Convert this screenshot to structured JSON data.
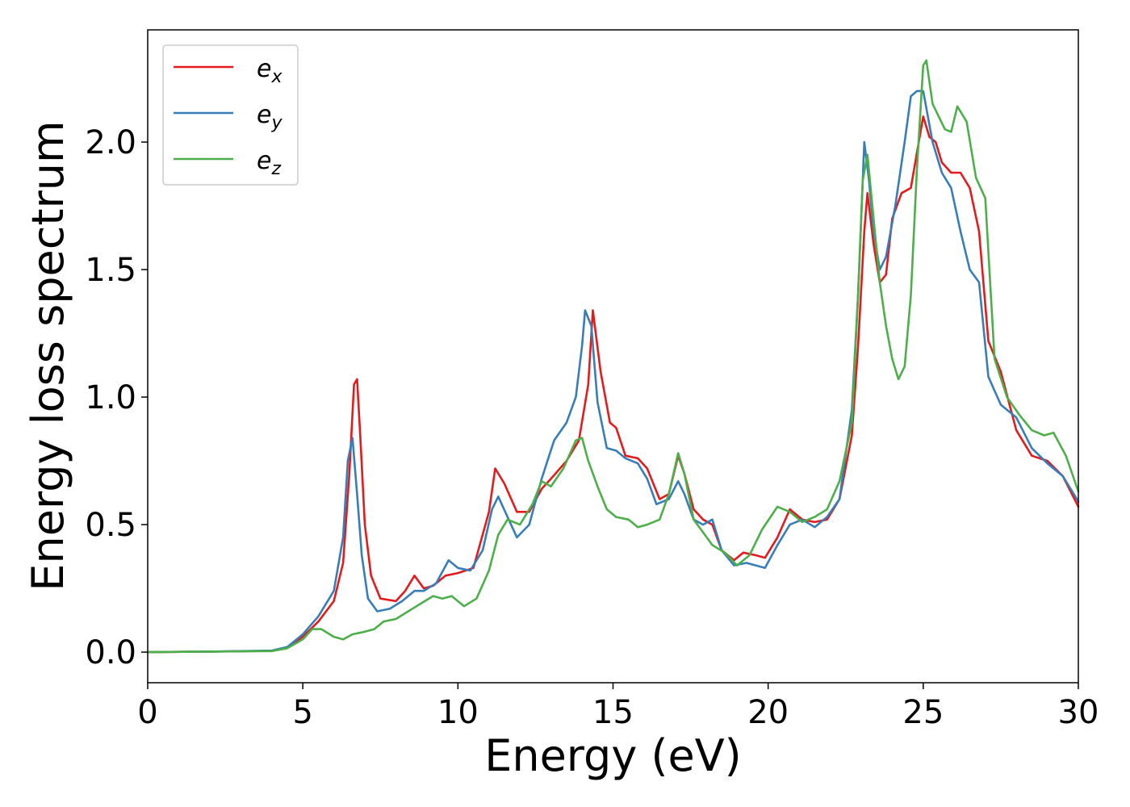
{
  "chart_data": {
    "type": "line",
    "xlabel": "Energy (eV)",
    "ylabel": "Energy loss spectrum",
    "xlim": [
      0,
      30
    ],
    "ylim": [
      -0.12,
      2.44
    ],
    "xticks": [
      0,
      5,
      10,
      15,
      20,
      25,
      30
    ],
    "xtick_labels": [
      "0",
      "5",
      "10",
      "15",
      "20",
      "25",
      "30"
    ],
    "yticks": [
      0.0,
      0.5,
      1.0,
      1.5,
      2.0
    ],
    "ytick_labels": [
      "0.0",
      "0.5",
      "1.0",
      "1.5",
      "2.0"
    ],
    "grid": false,
    "legend_position": "top-left",
    "series": [
      {
        "name": "e_x",
        "label_base": "e",
        "label_sub": "x",
        "color": "#e41a1c",
        "x": [
          0,
          2,
          4,
          4.5,
          5,
          5.5,
          6,
          6.3,
          6.5,
          6.65,
          6.75,
          6.85,
          7,
          7.2,
          7.5,
          8,
          8.3,
          8.6,
          8.9,
          9.2,
          9.6,
          10,
          10.5,
          11,
          11.2,
          11.5,
          11.9,
          12.3,
          12.7,
          13,
          13.5,
          13.9,
          14.2,
          14.35,
          14.6,
          14.9,
          15.1,
          15.4,
          15.8,
          16.1,
          16.5,
          16.8,
          17.1,
          17.3,
          17.6,
          17.9,
          18.2,
          18.5,
          18.9,
          19.2,
          19.6,
          19.9,
          20.3,
          20.7,
          21.1,
          21.5,
          21.9,
          22.3,
          22.7,
          22.9,
          23.1,
          23.2,
          23.4,
          23.6,
          23.8,
          24,
          24.3,
          24.6,
          24.8,
          25,
          25.2,
          25.4,
          25.6,
          25.9,
          26.2,
          26.5,
          26.8,
          27.1,
          27.5,
          28,
          28.5,
          29,
          29.5,
          30
        ],
        "y": [
          0.0,
          0.002,
          0.005,
          0.02,
          0.06,
          0.12,
          0.2,
          0.35,
          0.7,
          1.05,
          1.07,
          0.85,
          0.5,
          0.3,
          0.21,
          0.2,
          0.24,
          0.3,
          0.25,
          0.26,
          0.3,
          0.31,
          0.33,
          0.55,
          0.72,
          0.66,
          0.55,
          0.55,
          0.64,
          0.68,
          0.75,
          0.83,
          1.05,
          1.34,
          1.1,
          0.9,
          0.88,
          0.77,
          0.76,
          0.72,
          0.6,
          0.62,
          0.77,
          0.7,
          0.56,
          0.52,
          0.5,
          0.4,
          0.36,
          0.39,
          0.38,
          0.37,
          0.45,
          0.56,
          0.52,
          0.51,
          0.52,
          0.6,
          0.85,
          1.2,
          1.65,
          1.8,
          1.6,
          1.45,
          1.48,
          1.7,
          1.8,
          1.82,
          1.96,
          2.1,
          2.02,
          2.0,
          1.92,
          1.88,
          1.88,
          1.82,
          1.65,
          1.22,
          1.1,
          0.87,
          0.77,
          0.75,
          0.69,
          0.57
        ]
      },
      {
        "name": "e_y",
        "label_base": "e",
        "label_sub": "y",
        "color": "#377eb8",
        "x": [
          0,
          2,
          4,
          4.5,
          5,
          5.5,
          6,
          6.3,
          6.45,
          6.6,
          6.75,
          6.9,
          7.1,
          7.4,
          7.8,
          8.2,
          8.6,
          8.9,
          9.3,
          9.7,
          10,
          10.4,
          10.8,
          11.1,
          11.3,
          11.6,
          11.9,
          12.3,
          12.7,
          13.1,
          13.5,
          13.8,
          14.0,
          14.1,
          14.3,
          14.5,
          14.8,
          15.1,
          15.4,
          15.8,
          16.1,
          16.4,
          16.8,
          17.1,
          17.3,
          17.6,
          17.9,
          18.2,
          18.5,
          18.9,
          19.3,
          19.6,
          19.9,
          20.3,
          20.7,
          21.1,
          21.5,
          21.9,
          22.3,
          22.7,
          22.9,
          23.1,
          23.25,
          23.4,
          23.6,
          23.8,
          24.1,
          24.4,
          24.6,
          24.8,
          25,
          25.3,
          25.6,
          25.9,
          26.2,
          26.5,
          26.8,
          27.1,
          27.5,
          28,
          28.5,
          29,
          29.5,
          30
        ],
        "y": [
          0.0,
          0.002,
          0.006,
          0.02,
          0.07,
          0.14,
          0.24,
          0.45,
          0.75,
          0.84,
          0.62,
          0.38,
          0.21,
          0.16,
          0.17,
          0.2,
          0.24,
          0.24,
          0.27,
          0.36,
          0.33,
          0.32,
          0.4,
          0.56,
          0.61,
          0.53,
          0.45,
          0.5,
          0.68,
          0.83,
          0.9,
          1.0,
          1.2,
          1.34,
          1.28,
          0.98,
          0.8,
          0.79,
          0.76,
          0.74,
          0.68,
          0.58,
          0.6,
          0.67,
          0.62,
          0.52,
          0.5,
          0.52,
          0.4,
          0.34,
          0.35,
          0.34,
          0.33,
          0.42,
          0.5,
          0.52,
          0.49,
          0.53,
          0.6,
          0.95,
          1.4,
          2.0,
          1.85,
          1.65,
          1.5,
          1.55,
          1.75,
          2.0,
          2.18,
          2.2,
          2.2,
          2.0,
          1.88,
          1.82,
          1.65,
          1.5,
          1.45,
          1.08,
          0.97,
          0.92,
          0.8,
          0.74,
          0.69,
          0.59
        ]
      },
      {
        "name": "e_z",
        "label_base": "e",
        "label_sub": "z",
        "color": "#4daf4a",
        "x": [
          0,
          2,
          4,
          4.5,
          5,
          5.3,
          5.6,
          6,
          6.3,
          6.6,
          7.0,
          7.3,
          7.6,
          8.0,
          8.4,
          8.8,
          9.2,
          9.5,
          9.8,
          10.2,
          10.6,
          11.0,
          11.3,
          11.6,
          12.0,
          12.4,
          12.7,
          13.0,
          13.4,
          13.8,
          14.0,
          14.2,
          14.5,
          14.8,
          15.1,
          15.5,
          15.8,
          16.1,
          16.5,
          16.8,
          17.1,
          17.3,
          17.6,
          17.9,
          18.2,
          18.6,
          19.0,
          19.4,
          19.8,
          20.3,
          20.7,
          21.1,
          21.5,
          21.9,
          22.3,
          22.7,
          22.9,
          23.05,
          23.2,
          23.4,
          23.6,
          23.8,
          24.0,
          24.2,
          24.4,
          24.6,
          24.8,
          25.0,
          25.1,
          25.3,
          25.5,
          25.7,
          25.9,
          26.1,
          26.4,
          26.7,
          27.0,
          27.3,
          27.7,
          28.1,
          28.5,
          28.9,
          29.2,
          29.6,
          30
        ],
        "y": [
          0.0,
          0.002,
          0.004,
          0.015,
          0.05,
          0.09,
          0.09,
          0.06,
          0.05,
          0.07,
          0.08,
          0.09,
          0.12,
          0.13,
          0.16,
          0.19,
          0.22,
          0.21,
          0.22,
          0.18,
          0.21,
          0.32,
          0.46,
          0.52,
          0.5,
          0.58,
          0.67,
          0.65,
          0.72,
          0.83,
          0.84,
          0.75,
          0.65,
          0.56,
          0.53,
          0.52,
          0.49,
          0.5,
          0.52,
          0.62,
          0.78,
          0.7,
          0.52,
          0.47,
          0.42,
          0.39,
          0.34,
          0.38,
          0.48,
          0.57,
          0.55,
          0.51,
          0.53,
          0.56,
          0.67,
          0.9,
          1.4,
          1.85,
          1.95,
          1.7,
          1.45,
          1.28,
          1.15,
          1.07,
          1.12,
          1.4,
          1.9,
          2.3,
          2.32,
          2.15,
          2.1,
          2.05,
          2.04,
          2.14,
          2.08,
          1.86,
          1.78,
          1.15,
          1.0,
          0.93,
          0.87,
          0.85,
          0.86,
          0.77,
          0.63
        ]
      }
    ]
  }
}
